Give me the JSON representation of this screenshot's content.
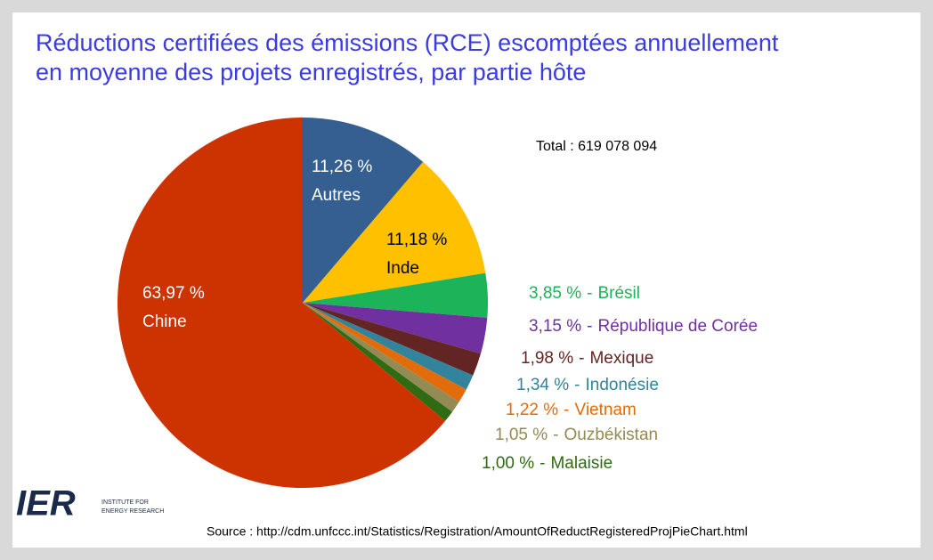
{
  "chart_data": {
    "type": "pie",
    "title": "Réductions certifiées des émissions (RCE) escomptées annuellement en moyenne des projets enregistrés, par partie hôte",
    "annotation": "Total : 619 078 094",
    "source": "Source : http://cdm.unfccc.int/Statistics/Registration/AmountOfReductRegisteredProjPieChart.html",
    "logo": {
      "mark": "IER",
      "lines": [
        "INSTITUTE FOR",
        "ENERGY RESEARCH"
      ]
    },
    "label_separator": "-",
    "categories": [
      "Autres",
      "Inde",
      "Brésil",
      "République de Corée",
      "Mexique",
      "Indonésie",
      "Vietnam",
      "Ouzbékistan",
      "Malaisie",
      "Chine"
    ],
    "values": [
      11.26,
      11.18,
      3.85,
      3.15,
      1.98,
      1.34,
      1.22,
      1.05,
      1.0,
      63.97
    ],
    "value_labels": [
      "11,26 %",
      "11,18 %",
      "3,85 %",
      "3,15 %",
      "1,98 %",
      "1,34 %",
      "1,22 %",
      "1,05 %",
      "1,00 %",
      "63,97 %"
    ],
    "colors": [
      "#355f91",
      "#ffc000",
      "#1db359",
      "#7030a0",
      "#632523",
      "#31849b",
      "#e36c0a",
      "#948a54",
      "#2f6b12",
      "#cc3300"
    ]
  }
}
